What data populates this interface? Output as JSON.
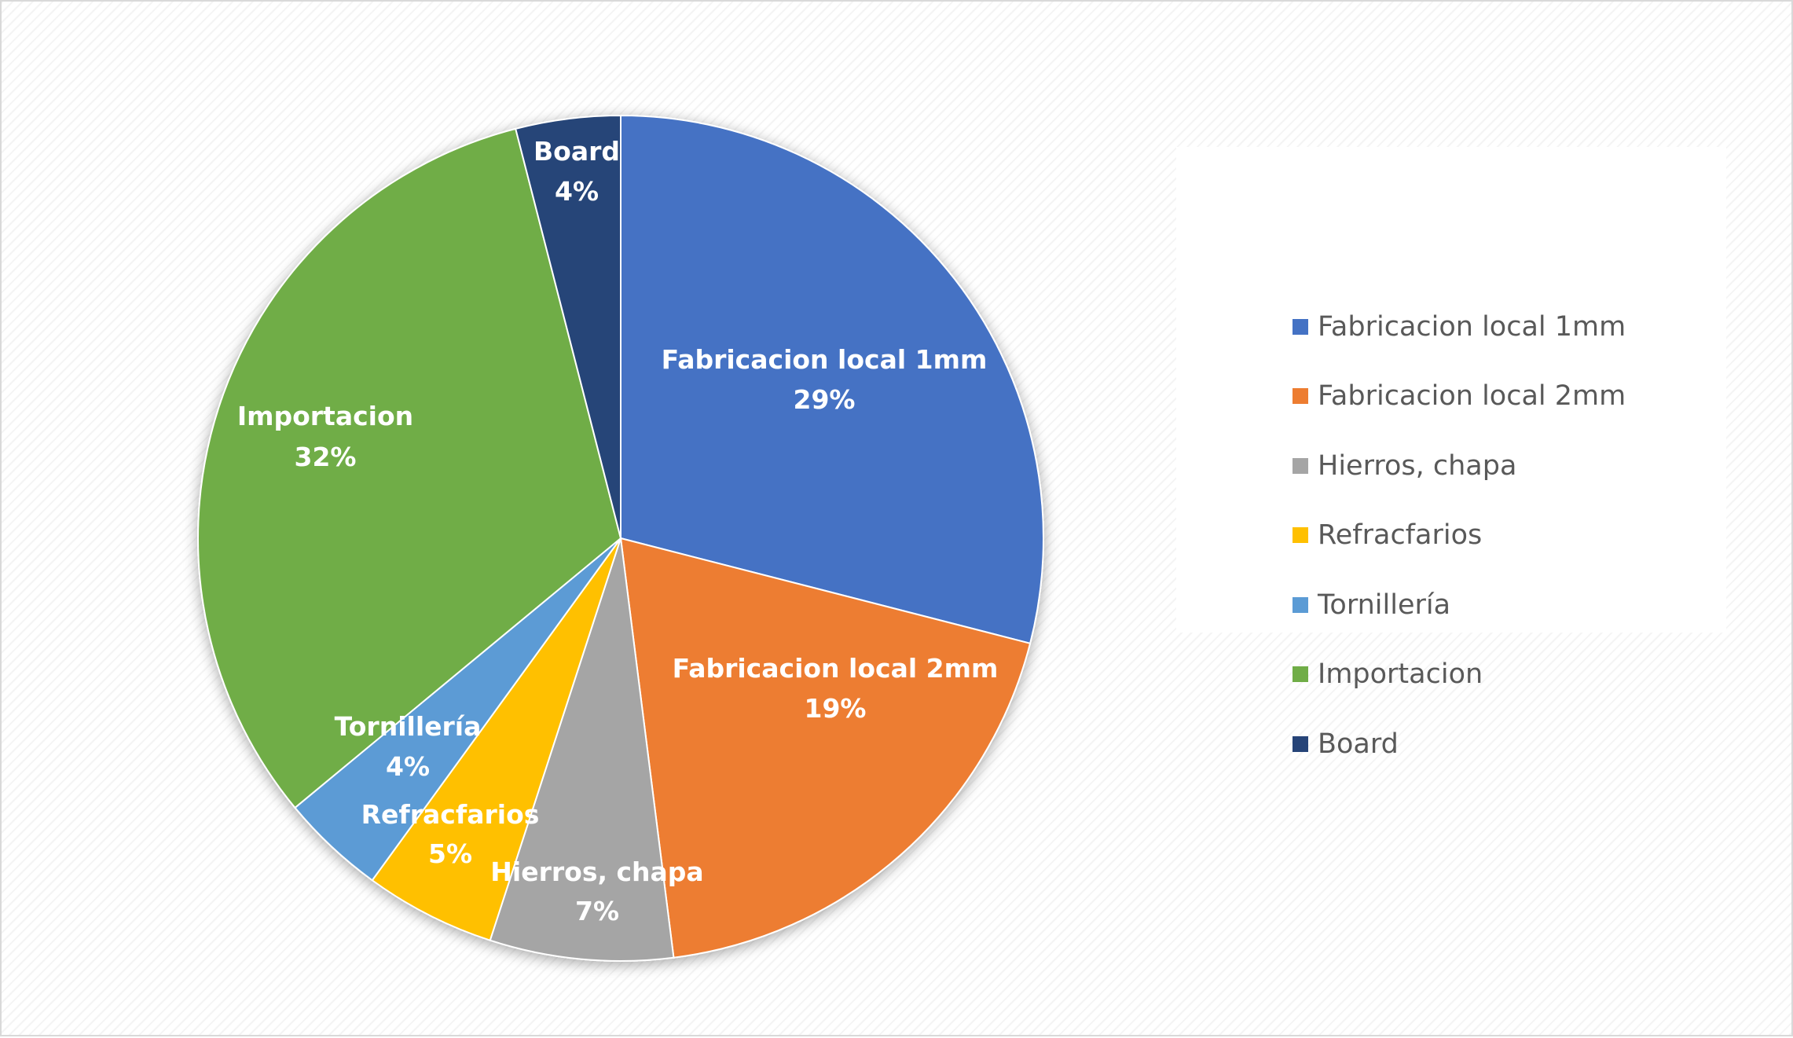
{
  "chart_data": {
    "type": "pie",
    "title": "",
    "slices": [
      {
        "label": "Fabricacion local 1mm",
        "value": 29,
        "display": "29%",
        "color": "#4472C4"
      },
      {
        "label": "Fabricacion local 2mm",
        "value": 19,
        "display": "19%",
        "color": "#ED7D31"
      },
      {
        "label": "Hierros, chapa",
        "value": 7,
        "display": "7%",
        "color": "#A5A5A5"
      },
      {
        "label": "Refracfarios",
        "value": 5,
        "display": "5%",
        "color": "#FFC000"
      },
      {
        "label": "Tornillería",
        "value": 4,
        "display": "4%",
        "color": "#5B9BD5"
      },
      {
        "label": "Importacion",
        "value": 32,
        "display": "32%",
        "color": "#70AD47"
      },
      {
        "label": "Board",
        "value": 4,
        "display": "4%",
        "color": "#264478"
      }
    ],
    "legend_position": "right",
    "data_labels": "category and percentage"
  },
  "legend": {
    "items": [
      {
        "label": "Fabricacion local 1mm",
        "color": "#4472C4"
      },
      {
        "label": "Fabricacion local 2mm",
        "color": "#ED7D31"
      },
      {
        "label": "Hierros, chapa",
        "color": "#A5A5A5"
      },
      {
        "label": "Refracfarios",
        "color": "#FFC000"
      },
      {
        "label": "Tornillería",
        "color": "#5B9BD5"
      },
      {
        "label": "Importacion",
        "color": "#70AD47"
      },
      {
        "label": "Board",
        "color": "#264478"
      }
    ]
  }
}
